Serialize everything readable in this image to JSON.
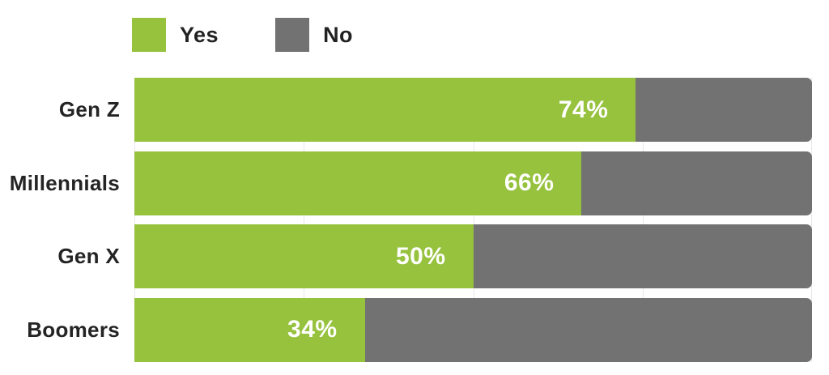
{
  "legend": {
    "position": "top",
    "items": [
      {
        "label": "Yes",
        "color": "#96c23e"
      },
      {
        "label": "No",
        "color": "#727272"
      }
    ]
  },
  "chart_data": {
    "type": "bar",
    "orientation": "horizontal",
    "stacked": true,
    "categories": [
      "Gen Z",
      "Millennials",
      "Gen X",
      "Boomers"
    ],
    "series": [
      {
        "name": "Yes",
        "color": "#96c23e",
        "values": [
          74,
          66,
          50,
          34
        ]
      },
      {
        "name": "No",
        "color": "#727272",
        "values": [
          26,
          34,
          50,
          66
        ]
      }
    ],
    "value_labels": [
      "74%",
      "66%",
      "50%",
      "34%"
    ],
    "title": "",
    "xlabel": "",
    "ylabel": "",
    "xlim": [
      0,
      100
    ],
    "gridlines_pct": [
      0,
      25,
      50,
      75,
      100
    ],
    "gridline_color": "#e7e7e7",
    "legend_position": "top"
  },
  "colors": {
    "background": "#ffffff",
    "label_text": "#242424",
    "bar_value_text": "#ffffff"
  }
}
